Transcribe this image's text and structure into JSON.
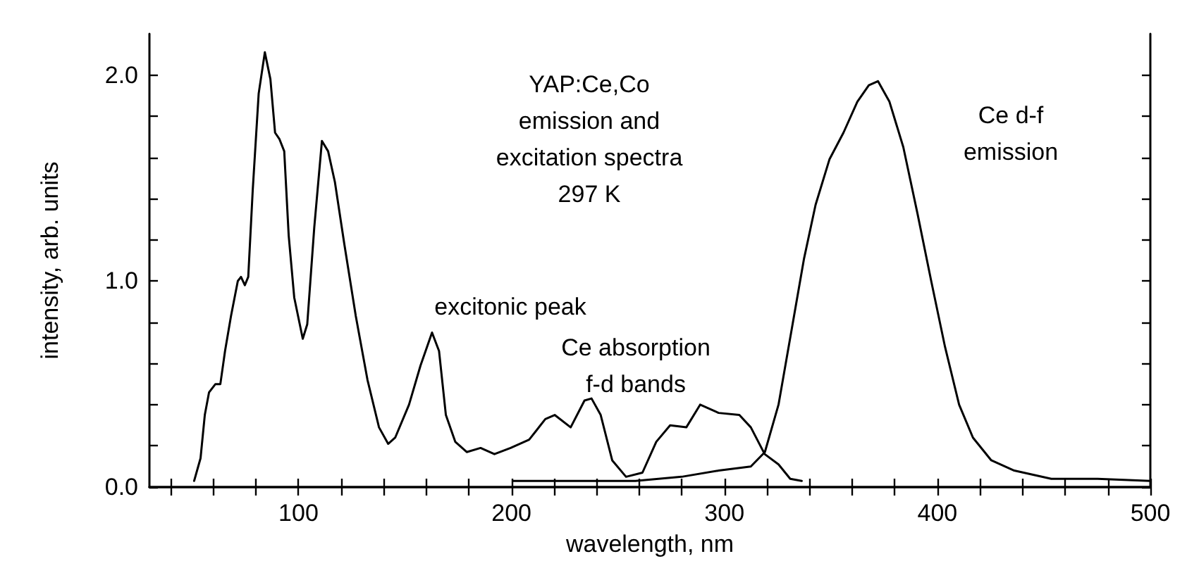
{
  "chart_data": {
    "type": "line",
    "xlabel": "wavelength, nm",
    "ylabel": "intensity, arb. units",
    "xlim": [
      30,
      500
    ],
    "ylim": [
      0,
      2.2
    ],
    "xticks": [
      {
        "value": 40,
        "label": null
      },
      {
        "value": 60,
        "label": null
      },
      {
        "value": 80,
        "label": null
      },
      100,
      {
        "value": 120,
        "label": null
      },
      {
        "value": 140,
        "label": null
      },
      {
        "value": 160,
        "label": null
      },
      {
        "value": 180,
        "label": null
      },
      200,
      {
        "value": 220,
        "label": null
      },
      {
        "value": 240,
        "label": null
      },
      {
        "value": 260,
        "label": null
      },
      {
        "value": 280,
        "label": null
      },
      300,
      {
        "value": 320,
        "label": null
      },
      {
        "value": 340,
        "label": null
      },
      {
        "value": 360,
        "label": null
      },
      {
        "value": 380,
        "label": null
      },
      400,
      {
        "value": 420,
        "label": null
      },
      {
        "value": 440,
        "label": null
      },
      {
        "value": 460,
        "label": null
      },
      {
        "value": 480,
        "label": null
      },
      500
    ],
    "yticks": [
      {
        "value": 0,
        "label": "0.0"
      },
      {
        "value": 0.2,
        "label": null
      },
      {
        "value": 0.4,
        "label": null
      },
      {
        "value": 0.6,
        "label": null
      },
      {
        "value": 0.8,
        "label": null
      },
      {
        "value": 1,
        "label": "1.0"
      },
      {
        "value": 1.2,
        "label": null
      },
      {
        "value": 1.4,
        "label": null
      },
      {
        "value": 1.6,
        "label": null
      },
      {
        "value": 1.8,
        "label": null
      },
      {
        "value": 2,
        "label": "2.0"
      }
    ],
    "grid": false,
    "marker": "none",
    "line_style": "solid",
    "series": [
      {
        "color": "#000000",
        "x": [
          51,
          54,
          56,
          58,
          61,
          63.3,
          65.5,
          68.3,
          71.5,
          73,
          74.8,
          76.4,
          78.5,
          81.3,
          84.2,
          86.8,
          89,
          91,
          93.3,
          95.4,
          98,
          102,
          104.1,
          107.4,
          111,
          113.9,
          117.1,
          121.5,
          126.9,
          132.4,
          137.8,
          142.1,
          145.4,
          151.9,
          157.3,
          162.7,
          166,
          169.2,
          173.6,
          179,
          185.5,
          192,
          199.6,
          208.3,
          215.9,
          220.3,
          227.8,
          234.3,
          237.6,
          241.9,
          247.3,
          253.8,
          261.5,
          268,
          274.5,
          282.1,
          288.6,
          297.3,
          307,
          312.4,
          318.9,
          325.4,
          330.9,
          336.3
        ],
        "values": [
          0.03,
          0.14,
          0.35,
          0.46,
          0.5,
          0.5,
          0.66,
          0.83,
          1.0,
          1.02,
          0.98,
          1.02,
          1.44,
          1.91,
          2.11,
          1.98,
          1.72,
          1.69,
          1.63,
          1.22,
          0.92,
          0.72,
          0.79,
          1.26,
          1.68,
          1.63,
          1.48,
          1.18,
          0.83,
          0.52,
          0.29,
          0.21,
          0.24,
          0.4,
          0.59,
          0.75,
          0.66,
          0.35,
          0.22,
          0.17,
          0.19,
          0.16,
          0.19,
          0.23,
          0.33,
          0.35,
          0.29,
          0.42,
          0.43,
          0.35,
          0.13,
          0.05,
          0.07,
          0.22,
          0.3,
          0.29,
          0.4,
          0.36,
          0.35,
          0.29,
          0.16,
          0.11,
          0.04,
          0.03
        ]
      },
      {
        "color": "#000000",
        "x": [
          200.7,
          225.7,
          258.2,
          279.9,
          297.3,
          312.4,
          319,
          325.4,
          332,
          337.4,
          342.8,
          349.3,
          355.9,
          362.4,
          367.8,
          372.1,
          377.5,
          384,
          390.6,
          397.1,
          403.6,
          410.2,
          416.7,
          425.3,
          436.1,
          453.5,
          475.2,
          500
        ],
        "values": [
          0.03,
          0.03,
          0.03,
          0.05,
          0.08,
          0.1,
          0.17,
          0.4,
          0.79,
          1.11,
          1.37,
          1.59,
          1.72,
          1.87,
          1.95,
          1.97,
          1.87,
          1.65,
          1.33,
          1.0,
          0.68,
          0.4,
          0.24,
          0.13,
          0.08,
          0.04,
          0.04,
          0.03
        ]
      }
    ],
    "annotations": [
      "YAP:Ce,Co\nemission and\nexcitation spectra\n297 K",
      "excitonic peak",
      "Ce absorption\nf-d bands",
      "Ce d-f\nemission"
    ]
  }
}
